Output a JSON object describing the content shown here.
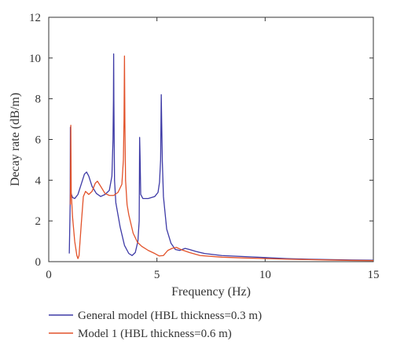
{
  "chart_data": {
    "type": "line",
    "title": "",
    "xlabel": "Frequency (Hz)",
    "ylabel": "Decay rate (dB/m)",
    "xlim": [
      0,
      15
    ],
    "ylim": [
      0,
      12
    ],
    "xticks": [
      0,
      5,
      10,
      15
    ],
    "yticks": [
      0,
      2,
      4,
      6,
      8,
      10,
      12
    ],
    "grid": false,
    "legend_position": "below-left",
    "series": [
      {
        "name": "General model (HBL thickness=0.3 m)",
        "color": "#3d3aa6",
        "points": [
          [
            0.95,
            0.4
          ],
          [
            0.99,
            2.8
          ],
          [
            1.0,
            6.6
          ],
          [
            1.01,
            3.4
          ],
          [
            1.05,
            3.3
          ],
          [
            1.1,
            3.15
          ],
          [
            1.2,
            3.1
          ],
          [
            1.35,
            3.3
          ],
          [
            1.5,
            3.8
          ],
          [
            1.65,
            4.3
          ],
          [
            1.75,
            4.4
          ],
          [
            1.85,
            4.2
          ],
          [
            2.0,
            3.7
          ],
          [
            2.2,
            3.35
          ],
          [
            2.4,
            3.2
          ],
          [
            2.6,
            3.3
          ],
          [
            2.8,
            3.5
          ],
          [
            2.92,
            4.2
          ],
          [
            2.97,
            6.0
          ],
          [
            2.99,
            7.9
          ],
          [
            3.0,
            10.2
          ],
          [
            3.01,
            7.9
          ],
          [
            3.04,
            4.0
          ],
          [
            3.1,
            2.9
          ],
          [
            3.3,
            1.7
          ],
          [
            3.5,
            0.8
          ],
          [
            3.7,
            0.4
          ],
          [
            3.85,
            0.3
          ],
          [
            4.0,
            0.45
          ],
          [
            4.12,
            1.0
          ],
          [
            4.18,
            2.0
          ],
          [
            4.2,
            6.1
          ],
          [
            4.22,
            5.2
          ],
          [
            4.25,
            3.3
          ],
          [
            4.35,
            3.1
          ],
          [
            4.6,
            3.1
          ],
          [
            4.9,
            3.2
          ],
          [
            5.05,
            3.4
          ],
          [
            5.12,
            3.9
          ],
          [
            5.17,
            5.0
          ],
          [
            5.2,
            8.2
          ],
          [
            5.22,
            6.8
          ],
          [
            5.25,
            4.9
          ],
          [
            5.3,
            3.2
          ],
          [
            5.45,
            1.6
          ],
          [
            5.65,
            0.9
          ],
          [
            5.85,
            0.6
          ],
          [
            6.05,
            0.55
          ],
          [
            6.3,
            0.65
          ],
          [
            6.5,
            0.6
          ],
          [
            6.8,
            0.5
          ],
          [
            7.2,
            0.4
          ],
          [
            8.0,
            0.3
          ],
          [
            9.0,
            0.25
          ],
          [
            10.0,
            0.2
          ],
          [
            11.0,
            0.15
          ],
          [
            12.0,
            0.12
          ],
          [
            13.0,
            0.1
          ],
          [
            14.0,
            0.08
          ],
          [
            15.0,
            0.07
          ]
        ]
      },
      {
        "name": "Model 1 (HBL thickness=0.6 m)",
        "color": "#e2522a",
        "points": [
          [
            1.0,
            2.8
          ],
          [
            1.02,
            6.7
          ],
          [
            1.04,
            3.4
          ],
          [
            1.1,
            2.2
          ],
          [
            1.2,
            1.0
          ],
          [
            1.3,
            0.3
          ],
          [
            1.35,
            0.15
          ],
          [
            1.4,
            0.3
          ],
          [
            1.5,
            1.8
          ],
          [
            1.6,
            3.2
          ],
          [
            1.7,
            3.45
          ],
          [
            1.85,
            3.3
          ],
          [
            2.0,
            3.45
          ],
          [
            2.15,
            3.85
          ],
          [
            2.25,
            3.95
          ],
          [
            2.4,
            3.7
          ],
          [
            2.6,
            3.35
          ],
          [
            2.8,
            3.25
          ],
          [
            3.0,
            3.25
          ],
          [
            3.2,
            3.4
          ],
          [
            3.38,
            3.8
          ],
          [
            3.45,
            5.0
          ],
          [
            3.48,
            7.0
          ],
          [
            3.5,
            10.1
          ],
          [
            3.52,
            6.8
          ],
          [
            3.55,
            4.0
          ],
          [
            3.62,
            2.8
          ],
          [
            3.7,
            2.3
          ],
          [
            3.9,
            1.4
          ],
          [
            4.1,
            0.95
          ],
          [
            4.3,
            0.75
          ],
          [
            4.6,
            0.55
          ],
          [
            4.9,
            0.4
          ],
          [
            5.1,
            0.28
          ],
          [
            5.3,
            0.3
          ],
          [
            5.5,
            0.55
          ],
          [
            5.7,
            0.65
          ],
          [
            5.9,
            0.7
          ],
          [
            6.1,
            0.6
          ],
          [
            6.5,
            0.45
          ],
          [
            7.0,
            0.3
          ],
          [
            8.0,
            0.22
          ],
          [
            9.0,
            0.18
          ],
          [
            10.0,
            0.15
          ],
          [
            11.0,
            0.12
          ],
          [
            12.0,
            0.1
          ],
          [
            13.0,
            0.08
          ],
          [
            14.0,
            0.06
          ],
          [
            15.0,
            0.05
          ]
        ]
      }
    ]
  }
}
